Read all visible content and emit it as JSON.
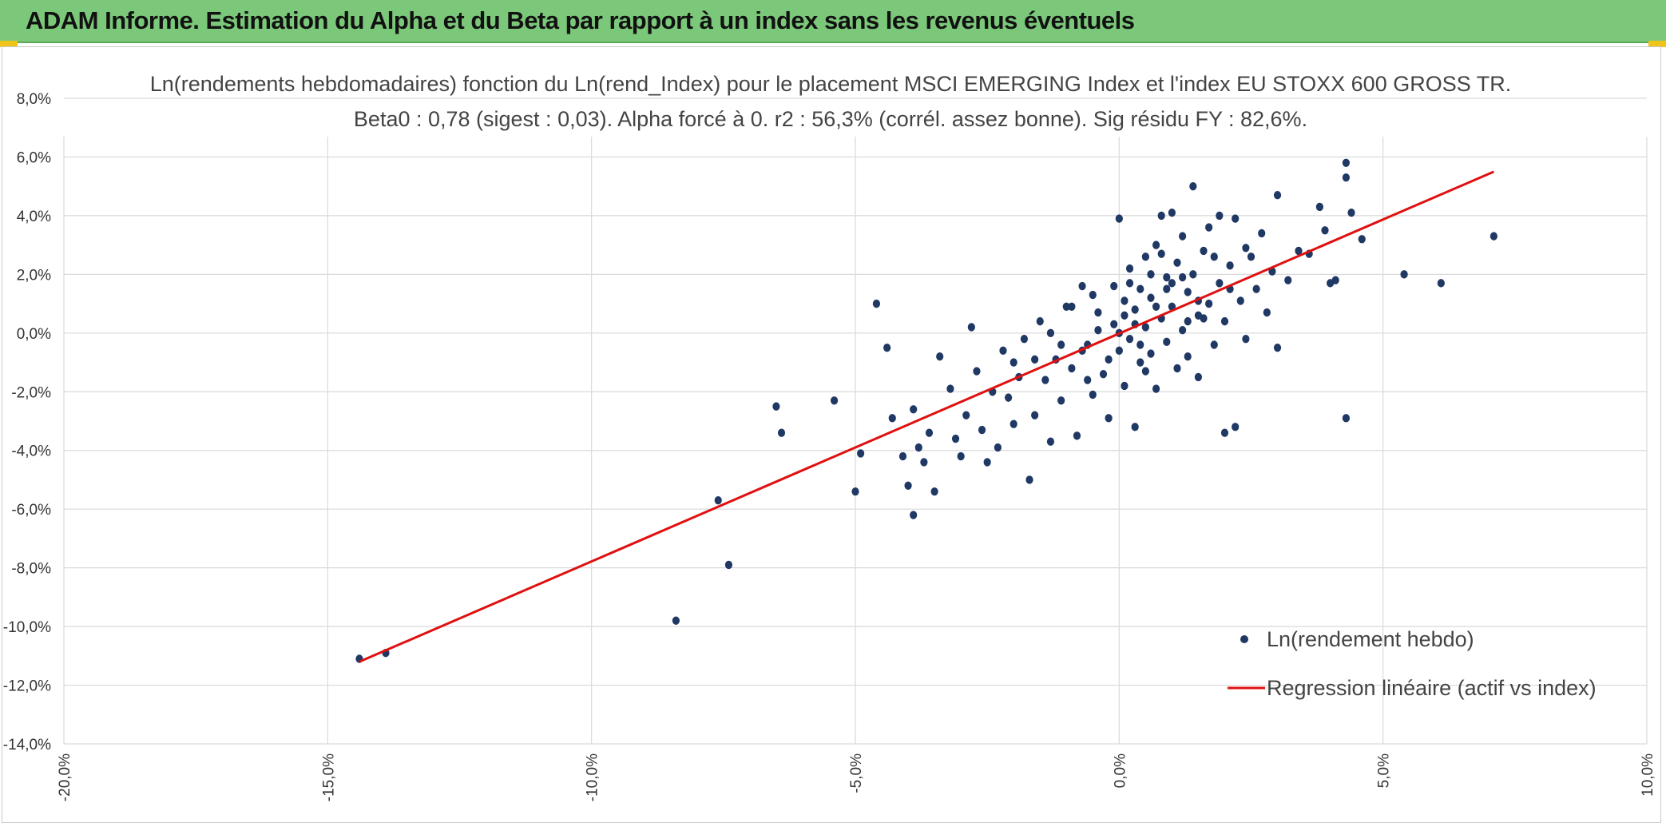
{
  "header": {
    "title": "ADAM Informe. Estimation du Alpha et du Beta par rapport à un index sans les revenus éventuels"
  },
  "colors": {
    "banner": "#7cc87a",
    "points": "#203864",
    "regression": "#e01010",
    "grid": "#d9d9d9"
  },
  "chart_data": {
    "type": "scatter",
    "title": "Ln(rendements hebdomadaires) fonction du Ln(rend_Index) pour le placement MSCI EMERGING Index et l'index EU STOXX 600 GROSS TR.",
    "subtitle": "Beta0 : 0,78 (sigest : 0,03). Alpha forcé à 0. r2 : 56,3% (corrél. assez bonne). Sig résidu FY : 82,6%.",
    "xlim": [
      -20,
      10
    ],
    "ylim": [
      -14,
      8
    ],
    "x_ticks": [
      "-20,0%",
      "-15,0%",
      "-10,0%",
      "-5,0%",
      "0,0%",
      "5,0%",
      "10,0%"
    ],
    "y_ticks": [
      "8,0%",
      "6,0%",
      "4,0%",
      "2,0%",
      "0,0%",
      "-2,0%",
      "-4,0%",
      "-6,0%",
      "-8,0%",
      "-10,0%",
      "-12,0%",
      "-14,0%"
    ],
    "grid": true,
    "legend_position": "bottom-right",
    "series": [
      {
        "name": "Ln(rendement hebdo)",
        "kind": "scatter",
        "points": [
          [
            -14.4,
            -11.1
          ],
          [
            -13.9,
            -10.9
          ],
          [
            -8.4,
            -9.8
          ],
          [
            -7.4,
            -7.9
          ],
          [
            -7.6,
            -5.7
          ],
          [
            -6.5,
            -2.5
          ],
          [
            -6.4,
            -3.4
          ],
          [
            -5.4,
            -2.3
          ],
          [
            -5.0,
            -5.4
          ],
          [
            -4.9,
            -4.1
          ],
          [
            -4.6,
            1.0
          ],
          [
            -4.4,
            -0.5
          ],
          [
            -4.3,
            -2.9
          ],
          [
            -4.1,
            -4.2
          ],
          [
            -4.0,
            -5.2
          ],
          [
            -3.9,
            -6.2
          ],
          [
            -3.9,
            -2.6
          ],
          [
            -3.8,
            -3.9
          ],
          [
            -3.7,
            -4.4
          ],
          [
            -3.6,
            -3.4
          ],
          [
            -3.5,
            -5.4
          ],
          [
            -3.4,
            -0.8
          ],
          [
            -3.2,
            -1.9
          ],
          [
            -3.1,
            -3.6
          ],
          [
            -3.0,
            -4.2
          ],
          [
            -2.9,
            -2.8
          ],
          [
            -2.8,
            0.2
          ],
          [
            -2.7,
            -1.3
          ],
          [
            -2.6,
            -3.3
          ],
          [
            -2.5,
            -4.4
          ],
          [
            -2.4,
            -2.0
          ],
          [
            -2.3,
            -3.9
          ],
          [
            -2.2,
            -0.6
          ],
          [
            -2.1,
            -2.2
          ],
          [
            -2.0,
            -3.1
          ],
          [
            -1.9,
            -1.5
          ],
          [
            -1.8,
            -0.2
          ],
          [
            -1.7,
            -5.0
          ],
          [
            -1.6,
            -2.8
          ],
          [
            -1.5,
            0.4
          ],
          [
            -1.4,
            -1.6
          ],
          [
            -1.3,
            -3.7
          ],
          [
            -1.2,
            -0.9
          ],
          [
            -1.1,
            -2.3
          ],
          [
            -1.0,
            0.9
          ],
          [
            -0.9,
            -1.2
          ],
          [
            -0.8,
            -3.5
          ],
          [
            -0.7,
            1.6
          ],
          [
            -0.6,
            -0.4
          ],
          [
            -0.5,
            -2.1
          ],
          [
            -0.4,
            0.7
          ],
          [
            -0.3,
            -1.4
          ],
          [
            -0.2,
            -2.9
          ],
          [
            -0.1,
            0.3
          ],
          [
            0.0,
            3.9
          ],
          [
            0.0,
            -0.6
          ],
          [
            0.1,
            1.1
          ],
          [
            0.1,
            -1.8
          ],
          [
            0.2,
            2.2
          ],
          [
            0.2,
            -0.2
          ],
          [
            0.3,
            0.8
          ],
          [
            0.3,
            -3.2
          ],
          [
            0.4,
            1.5
          ],
          [
            0.4,
            -1.0
          ],
          [
            0.5,
            0.2
          ],
          [
            0.5,
            2.6
          ],
          [
            0.6,
            -0.7
          ],
          [
            0.6,
            1.2
          ],
          [
            0.7,
            3.0
          ],
          [
            0.7,
            -1.9
          ],
          [
            0.8,
            0.5
          ],
          [
            0.8,
            4.0
          ],
          [
            0.9,
            -0.3
          ],
          [
            0.9,
            1.9
          ],
          [
            1.0,
            4.1
          ],
          [
            1.0,
            0.9
          ],
          [
            1.1,
            -1.2
          ],
          [
            1.1,
            2.4
          ],
          [
            1.2,
            0.1
          ],
          [
            1.2,
            3.3
          ],
          [
            1.3,
            1.4
          ],
          [
            1.3,
            -0.8
          ],
          [
            1.4,
            2.0
          ],
          [
            1.4,
            5.0
          ],
          [
            1.5,
            0.6
          ],
          [
            1.5,
            -1.5
          ],
          [
            1.6,
            2.8
          ],
          [
            1.7,
            1.0
          ],
          [
            1.7,
            3.6
          ],
          [
            1.8,
            -0.4
          ],
          [
            1.9,
            1.7
          ],
          [
            1.9,
            4.0
          ],
          [
            2.0,
            0.4
          ],
          [
            2.0,
            -3.4
          ],
          [
            2.1,
            2.3
          ],
          [
            2.2,
            3.9
          ],
          [
            2.2,
            -3.2
          ],
          [
            2.3,
            1.1
          ],
          [
            2.4,
            -0.2
          ],
          [
            2.5,
            2.6
          ],
          [
            2.6,
            1.5
          ],
          [
            2.7,
            3.4
          ],
          [
            2.8,
            0.7
          ],
          [
            2.9,
            2.1
          ],
          [
            3.0,
            -0.5
          ],
          [
            3.0,
            4.7
          ],
          [
            3.2,
            1.8
          ],
          [
            3.4,
            2.8
          ],
          [
            3.6,
            2.7
          ],
          [
            3.8,
            4.3
          ],
          [
            3.9,
            3.5
          ],
          [
            4.0,
            1.7
          ],
          [
            4.1,
            1.8
          ],
          [
            4.3,
            -2.9
          ],
          [
            4.3,
            5.8
          ],
          [
            4.3,
            5.3
          ],
          [
            4.4,
            4.1
          ],
          [
            4.6,
            3.2
          ],
          [
            5.4,
            2.0
          ],
          [
            6.1,
            1.7
          ],
          [
            7.1,
            3.3
          ],
          [
            -0.9,
            0.9
          ],
          [
            -1.3,
            0.0
          ],
          [
            -0.5,
            1.3
          ],
          [
            -0.2,
            -0.9
          ],
          [
            0.1,
            0.6
          ],
          [
            0.4,
            -0.4
          ],
          [
            0.6,
            2.0
          ],
          [
            0.9,
            1.5
          ],
          [
            1.2,
            1.9
          ],
          [
            1.5,
            1.1
          ],
          [
            1.8,
            2.6
          ],
          [
            2.1,
            1.5
          ],
          [
            -0.4,
            0.1
          ],
          [
            -0.7,
            -0.6
          ],
          [
            0.0,
            0.0
          ],
          [
            0.3,
            0.3
          ],
          [
            -1.6,
            -0.9
          ],
          [
            -2.0,
            -1.0
          ],
          [
            -1.1,
            -0.4
          ],
          [
            0.7,
            0.9
          ],
          [
            1.0,
            1.7
          ],
          [
            1.6,
            0.5
          ],
          [
            2.4,
            2.9
          ],
          [
            -0.1,
            1.6
          ],
          [
            0.5,
            -1.3
          ],
          [
            0.2,
            1.7
          ],
          [
            -0.6,
            -1.6
          ],
          [
            0.8,
            2.7
          ],
          [
            1.3,
            0.4
          ]
        ]
      },
      {
        "name": "Regression linéaire (actif vs index)",
        "kind": "line",
        "points": [
          [
            -14.4,
            -11.2
          ],
          [
            7.1,
            5.5
          ]
        ]
      }
    ]
  }
}
